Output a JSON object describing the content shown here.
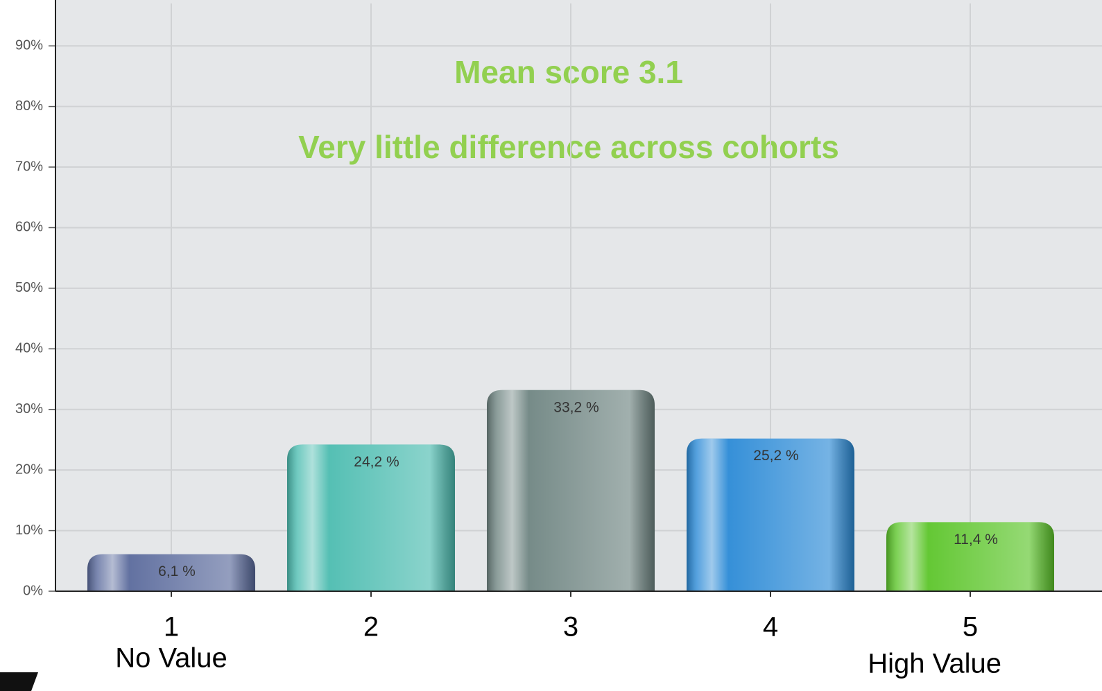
{
  "chart_data": {
    "type": "bar",
    "annotations": [
      "Mean score 3.1",
      "Very little difference across cohorts"
    ],
    "categories": [
      "1",
      "2",
      "3",
      "4",
      "5"
    ],
    "x_sublabels": [
      "No Value",
      null,
      null,
      null,
      "High Value"
    ],
    "values": [
      6.1,
      24.2,
      33.2,
      25.2,
      11.4
    ],
    "value_labels": [
      "6,1 %",
      "24,2 %",
      "33,2 %",
      "25,2 %",
      "11,4 %"
    ],
    "colors": [
      "#5a6a9c",
      "#4cbcb0",
      "#6f8582",
      "#2b8ad6",
      "#5cc52a"
    ],
    "ylim": [
      0,
      97
    ],
    "yticks": [
      {
        "value": 0,
        "label": "0%"
      },
      {
        "value": 10,
        "label": "10%"
      },
      {
        "value": 20,
        "label": "20%"
      },
      {
        "value": 30,
        "label": "30%"
      },
      {
        "value": 40,
        "label": "40%"
      },
      {
        "value": 50,
        "label": "50%"
      },
      {
        "value": 60,
        "label": "60%"
      },
      {
        "value": 70,
        "label": "70%"
      },
      {
        "value": 80,
        "label": "80%"
      },
      {
        "value": 90,
        "label": "90%"
      }
    ],
    "grid": true
  }
}
